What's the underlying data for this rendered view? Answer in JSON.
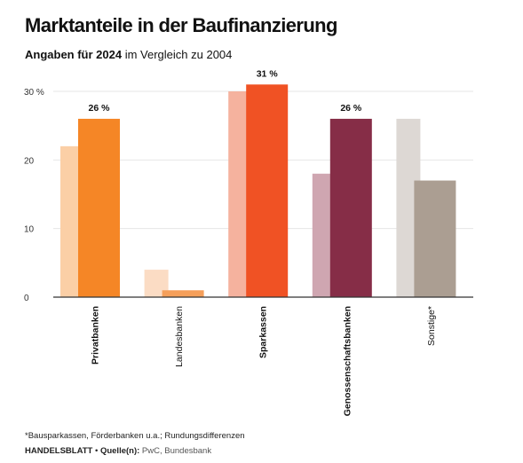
{
  "header": {
    "title": "Marktanteile in der Baufinanzierung",
    "subtitle_bold": "Angaben für 2024",
    "subtitle_rest": " im Vergleich zu 2004"
  },
  "footer": {
    "footnote": "*Bausparkassen, Förderbanken u.a.; Rundungsdifferenzen",
    "brand": "HANDELSBLATT",
    "separator": " • ",
    "source_label": "Quelle(n):",
    "source_value": " PwC, Bundesbank"
  },
  "chart_data": {
    "type": "bar",
    "categories": [
      "Privatbanken",
      "Landesbanken",
      "Sparkassen",
      "Genossenschaftsbanken",
      "Sonstige*"
    ],
    "bold_categories": [
      true,
      false,
      true,
      true,
      false
    ],
    "series": [
      {
        "values": [
          22,
          4,
          30,
          18,
          26
        ],
        "colors": [
          "#fbcfa6",
          "#fbdcc4",
          "#f5b29e",
          "#cfa6b1",
          "#ddd8d4"
        ]
      },
      {
        "values": [
          26,
          1,
          31,
          26,
          17
        ],
        "colors": [
          "#f58626",
          "#f59f5a",
          "#f05224",
          "#862d47",
          "#ab9e92"
        ]
      }
    ],
    "data_labels": [
      "26 %",
      "",
      "31 %",
      "26 %",
      ""
    ],
    "yticks": [
      "0",
      "10",
      "20",
      "30 %"
    ],
    "ytick_values": [
      0,
      10,
      20,
      30
    ],
    "ylim": [
      0,
      30
    ],
    "grid": true
  }
}
